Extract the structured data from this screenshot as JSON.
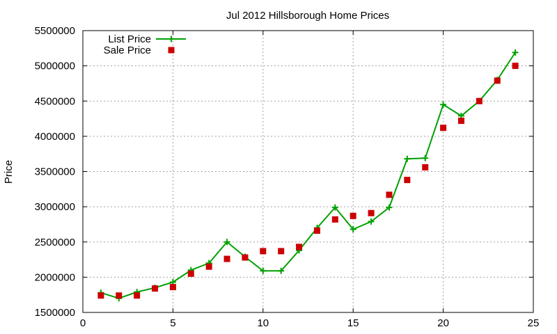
{
  "chart_data": {
    "type": "line",
    "title": "Jul 2012 Hillsborough Home Prices",
    "xlabel": "",
    "ylabel": "Price",
    "xlim": [
      0,
      25
    ],
    "ylim": [
      1500000,
      5500000
    ],
    "xticks": [
      0,
      5,
      10,
      15,
      20,
      25
    ],
    "yticks": [
      1500000,
      2000000,
      2500000,
      3000000,
      3500000,
      4000000,
      4500000,
      5000000,
      5500000
    ],
    "grid": true,
    "legend_position": "top-left",
    "x": [
      1,
      2,
      3,
      4,
      5,
      6,
      7,
      8,
      9,
      10,
      11,
      12,
      13,
      14,
      15,
      16,
      17,
      18,
      19,
      20,
      21,
      22,
      23,
      24
    ],
    "series": [
      {
        "name": "List Price",
        "style": "line-plus",
        "color": "#00a000",
        "values": [
          1780000,
          1700000,
          1790000,
          1850000,
          1930000,
          2100000,
          2200000,
          2500000,
          2290000,
          2090000,
          2090000,
          2380000,
          2700000,
          2990000,
          2680000,
          2790000,
          2990000,
          3680000,
          3690000,
          4450000,
          4290000,
          4500000,
          4800000,
          5190000
        ]
      },
      {
        "name": "Sale Price",
        "style": "square",
        "color": "#cc0000",
        "values": [
          1740000,
          1740000,
          1740000,
          1840000,
          1860000,
          2050000,
          2150000,
          2260000,
          2280000,
          2370000,
          2370000,
          2430000,
          2660000,
          2820000,
          2870000,
          2910000,
          3170000,
          3380000,
          3560000,
          4120000,
          4220000,
          4500000,
          4790000,
          5000000
        ]
      }
    ]
  }
}
